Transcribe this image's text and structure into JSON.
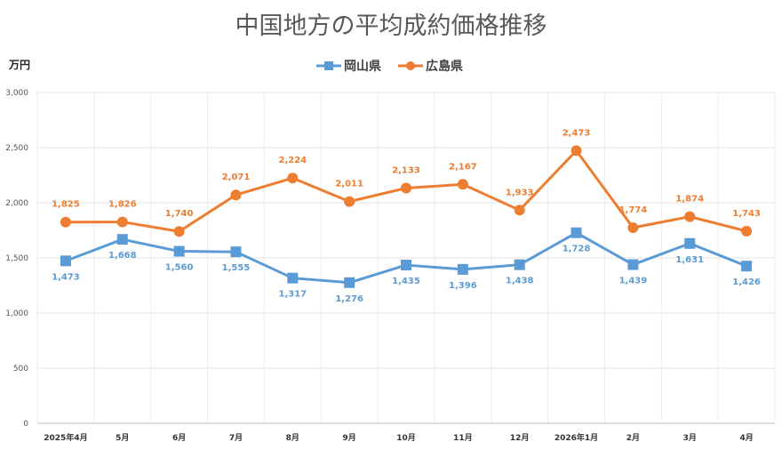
{
  "chart_data": {
    "type": "line",
    "title": "中国地方の平均成約価格推移",
    "ylabel": "万円",
    "xlabel": "",
    "categories": [
      "2025年4月",
      "5月",
      "6月",
      "7月",
      "8月",
      "9月",
      "10月",
      "11月",
      "12月",
      "2026年1月",
      "2月",
      "3月",
      "4月"
    ],
    "ylim": [
      0,
      3000
    ],
    "yticks": [
      0,
      500,
      1000,
      1500,
      2000,
      2500,
      3000
    ],
    "ytick_labels": [
      "0",
      "500",
      "1,000",
      "1,500",
      "2,000",
      "2,500",
      "3,000"
    ],
    "grid": true,
    "legend_position": "top-center",
    "series": [
      {
        "name": "岡山県",
        "color": "#5b9bd5",
        "marker": "square",
        "label_position": "below",
        "values": [
          1473,
          1668,
          1560,
          1555,
          1317,
          1276,
          1435,
          1396,
          1438,
          1728,
          1439,
          1631,
          1426
        ],
        "labels": [
          "1,473",
          "1,668",
          "1,560",
          "1,555",
          "1,317",
          "1,276",
          "1,435",
          "1,396",
          "1,438",
          "1,728",
          "1,439",
          "1,631",
          "1,426"
        ]
      },
      {
        "name": "広島県",
        "color": "#ed7d31",
        "marker": "circle",
        "label_position": "above",
        "values": [
          1825,
          1826,
          1740,
          2071,
          2224,
          2011,
          2133,
          2167,
          1933,
          2473,
          1774,
          1874,
          1743
        ],
        "labels": [
          "1,825",
          "1,826",
          "1,740",
          "2,071",
          "2,224",
          "2,011",
          "2,133",
          "2,167",
          "1,933",
          "2,473",
          "1,774",
          "1,874",
          "1,743"
        ]
      }
    ]
  }
}
